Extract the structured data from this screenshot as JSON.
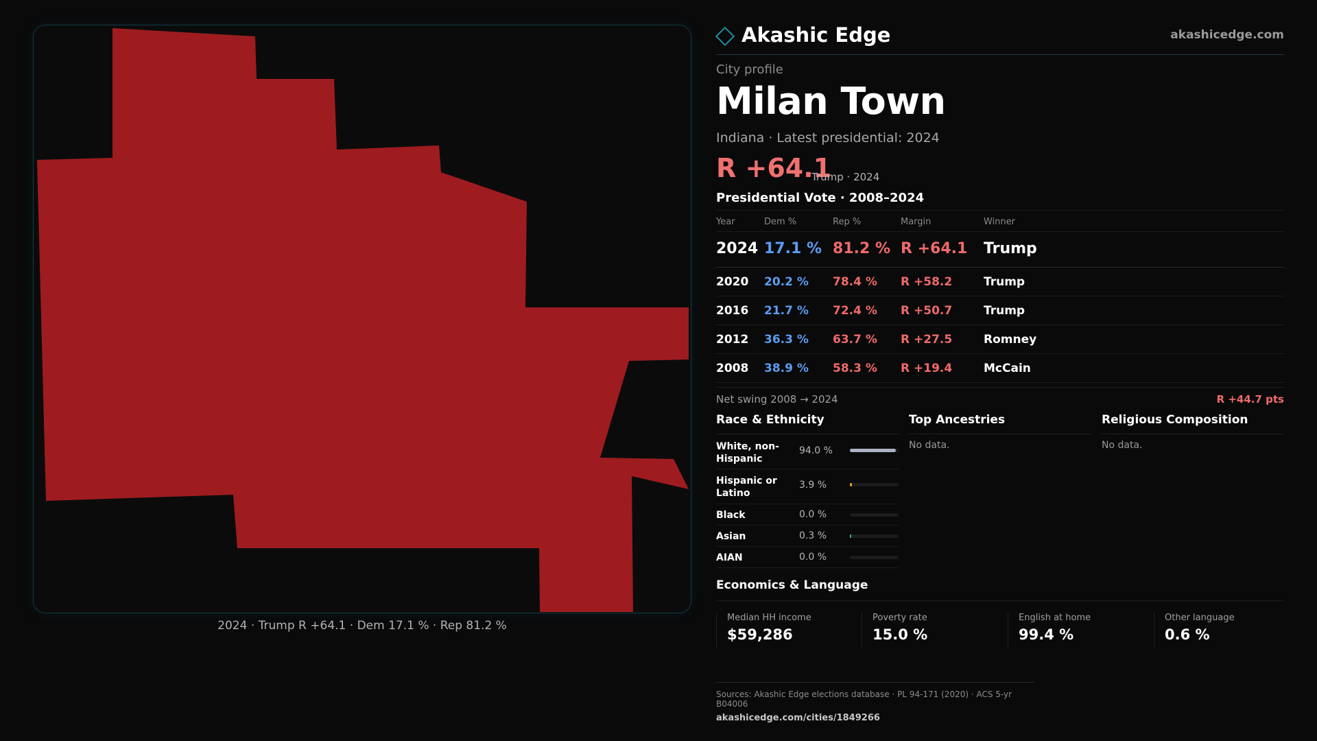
{
  "brand": {
    "name": "Akashic Edge",
    "url": "akashicedge.com",
    "icon": "diamond-icon",
    "accent": "#1f8fa0"
  },
  "header": {
    "eyebrow": "City profile",
    "title": "Milan Town",
    "subtitle": "Indiana · Latest presidential: 2024",
    "margin": "R +64.1",
    "margin_note": "Trump · 2024"
  },
  "map": {
    "fill_color": "#9e1c1f",
    "caption": "2024 · Trump R +64.1 · Dem 17.1 % · Rep 81.2 %"
  },
  "vote_table": {
    "title": "Presidential Vote · 2008–2024",
    "columns": {
      "year": "Year",
      "dem": "Dem %",
      "rep": "Rep %",
      "margin": "Margin",
      "winner": "Winner"
    },
    "rows": [
      {
        "year": "2024",
        "dem": "17.1 %",
        "rep": "81.2 %",
        "margin": "R +64.1",
        "winner": "Trump"
      },
      {
        "year": "2020",
        "dem": "20.2 %",
        "rep": "78.4 %",
        "margin": "R +58.2",
        "winner": "Trump"
      },
      {
        "year": "2016",
        "dem": "21.7 %",
        "rep": "72.4 %",
        "margin": "R +50.7",
        "winner": "Trump"
      },
      {
        "year": "2012",
        "dem": "36.3 %",
        "rep": "63.7 %",
        "margin": "R +27.5",
        "winner": "Romney"
      },
      {
        "year": "2008",
        "dem": "38.9 %",
        "rep": "58.3 %",
        "margin": "R +19.4",
        "winner": "McCain"
      }
    ],
    "colors": {
      "dem": "#5b9cf0",
      "rep": "#f06a6a"
    }
  },
  "swing": {
    "label": "Net swing 2008 → 2024",
    "value": "R +44.7 pts"
  },
  "race": {
    "title": "Race & Ethnicity",
    "rows": [
      {
        "label": "White, non-Hispanic",
        "value": "94.0 %",
        "share": 0.94,
        "color": "#aab2c0"
      },
      {
        "label": "Hispanic or Latino",
        "value": "3.9 %",
        "share": 0.039,
        "color": "#e0a030"
      },
      {
        "label": "Black",
        "value": "0.0 %",
        "share": 0.0,
        "color": "#6a6a6a"
      },
      {
        "label": "Asian",
        "value": "0.3 %",
        "share": 0.003,
        "color": "#3fb0a0"
      },
      {
        "label": "AIAN",
        "value": "0.0 %",
        "share": 0.0,
        "color": "#6a6a6a"
      }
    ]
  },
  "ancestries": {
    "title": "Top Ancestries",
    "empty": "No data."
  },
  "religion": {
    "title": "Religious Composition",
    "empty": "No data."
  },
  "economics": {
    "title": "Economics & Language",
    "cards": [
      {
        "label": "Median HH income",
        "value": "$59,286"
      },
      {
        "label": "Poverty rate",
        "value": "15.0 %"
      },
      {
        "label": "English at home",
        "value": "99.4 %"
      },
      {
        "label": "Other language",
        "value": "0.6 %"
      }
    ]
  },
  "sources": {
    "text": "Sources: Akashic Edge elections database · PL 94-171 (2020) · ACS 5-yr B04006",
    "url": "akashicedge.com/cities/1849266"
  }
}
